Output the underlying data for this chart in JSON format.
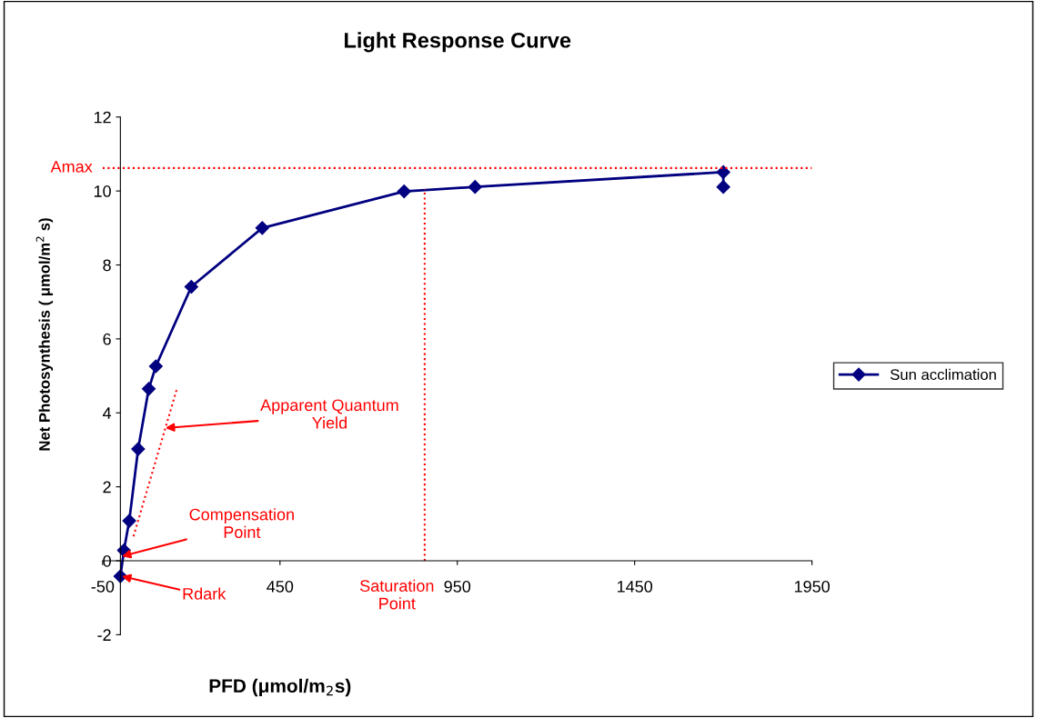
{
  "chart_data": {
    "type": "line",
    "title": "Light Response Curve",
    "xlabel": "PFD (μmol/m$_{2}$s)",
    "ylabel": "Net Photosynthesis ( μmol/m$^{2}$ s)",
    "x": [
      0,
      10,
      25,
      50,
      80,
      100,
      200,
      400,
      800,
      1000,
      1700,
      1700
    ],
    "series": [
      {
        "name": "Sun acclimation",
        "color": "#000080",
        "values": [
          -0.42,
          0.28,
          1.08,
          3.02,
          4.65,
          5.26,
          7.41,
          9.0,
          9.99,
          10.11,
          10.51,
          10.11
        ],
        "marker": "diamond",
        "line_style": "solid"
      },
      {
        "type": "line",
        "color": "#ff0000",
        "x": [
          858,
          858
        ],
        "values": [
          0,
          10.05
        ],
        "marker": "none",
        "line_style": "dotted"
      },
      {
        "type": "line",
        "color": "#ff0000",
        "x": [
          37,
          160
        ],
        "values": [
          0.66,
          4.67
        ],
        "marker": "none",
        "line_style": "dotted"
      }
    ],
    "ref_lines": [
      {
        "axis": "y",
        "value": 10.62,
        "label": "Amax",
        "color": "#ff0000",
        "line_style": "dotted"
      }
    ],
    "annotations": [
      {
        "text": "Apparent Quantum\nYield",
        "x": 127,
        "y": 3.59
      },
      {
        "text": "Compensation\nPoint",
        "x": 4,
        "y": 0.12
      },
      {
        "text": "Rdark",
        "x": 4,
        "y": -0.42
      },
      {
        "text": "Saturation\nPoint",
        "x": 858,
        "y": 0
      }
    ],
    "xlim": [
      -50,
      1950
    ],
    "xticks": [
      -50,
      450,
      950,
      1450,
      1950
    ],
    "ylim": [
      -2,
      12
    ],
    "yticks": [
      -2,
      0,
      2,
      4,
      6,
      8,
      10,
      12
    ],
    "grid": false,
    "legend": "right"
  }
}
